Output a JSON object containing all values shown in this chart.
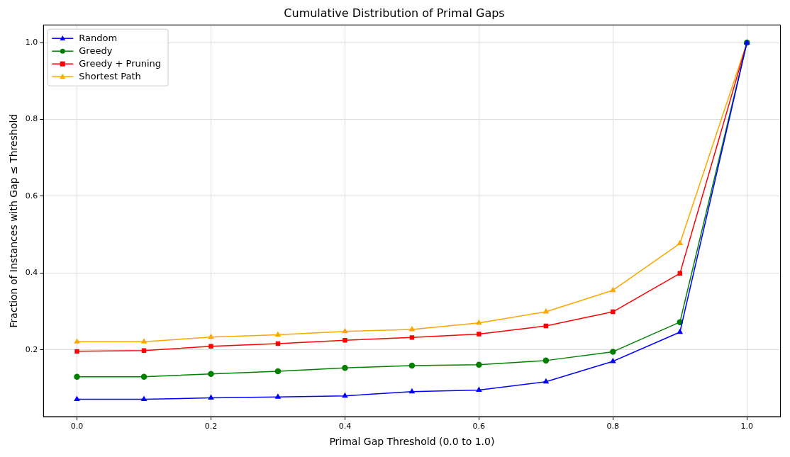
{
  "chart_data": {
    "type": "line",
    "title": "Cumulative Distribution of Primal Gaps",
    "xlabel": "Primal Gap Threshold (0.0 to 1.0)",
    "ylabel": "Fraction of Instances with Gap ≤ Threshold",
    "x": [
      0.0,
      0.1,
      0.2,
      0.3,
      0.4,
      0.5,
      0.6,
      0.7,
      0.8,
      0.9,
      1.0
    ],
    "series": [
      {
        "name": "Random",
        "color": "#0000ff",
        "marker": "triangle",
        "values": [
          0.071,
          0.071,
          0.075,
          0.077,
          0.08,
          0.091,
          0.095,
          0.117,
          0.17,
          0.246,
          1.0
        ]
      },
      {
        "name": "Greedy",
        "color": "#008000",
        "marker": "circle",
        "values": [
          0.13,
          0.13,
          0.137,
          0.144,
          0.153,
          0.159,
          0.161,
          0.172,
          0.195,
          0.272,
          1.0
        ]
      },
      {
        "name": "Greedy + Pruning",
        "color": "#ff0000",
        "marker": "square",
        "values": [
          0.196,
          0.198,
          0.209,
          0.216,
          0.225,
          0.232,
          0.241,
          0.262,
          0.299,
          0.399,
          1.0
        ]
      },
      {
        "name": "Shortest Path",
        "color": "#ffa500",
        "marker": "triangle",
        "values": [
          0.221,
          0.221,
          0.233,
          0.239,
          0.248,
          0.253,
          0.27,
          0.299,
          0.355,
          0.477,
          1.0
        ]
      }
    ],
    "xlim": [
      -0.05,
      1.05
    ],
    "xticks": [
      {
        "value": 0,
        "label": "0.0"
      },
      0.2,
      0.4,
      0.6,
      0.8,
      {
        "value": 1,
        "label": "1.0"
      }
    ],
    "ylim": [
      0.026,
      1.046
    ],
    "yticks": [
      0.2,
      0.4,
      0.6,
      0.8,
      {
        "value": 1,
        "label": "1.0"
      }
    ],
    "grid": true,
    "legend": "top left",
    "line_style": "solid"
  }
}
